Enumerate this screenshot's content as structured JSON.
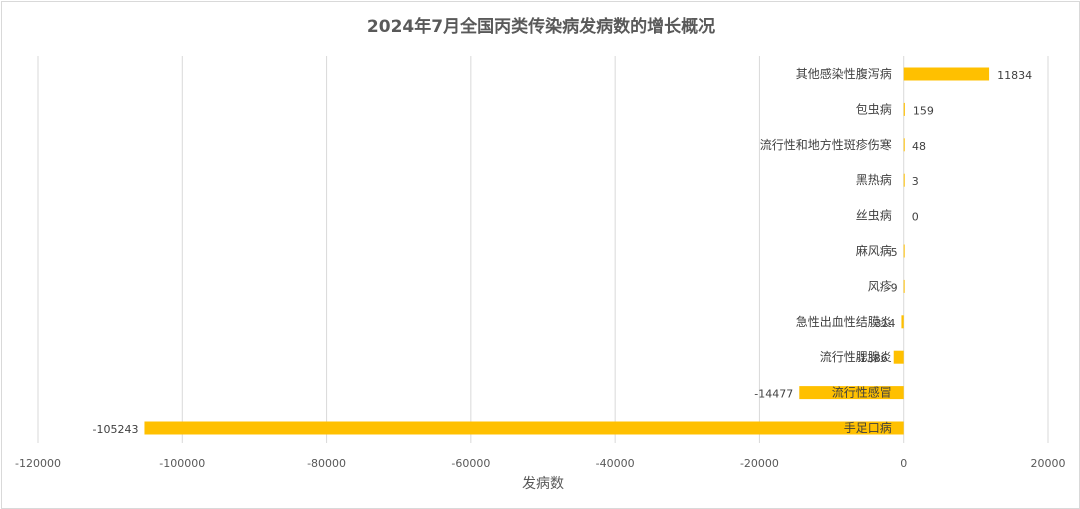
{
  "chart_data": {
    "type": "bar",
    "orientation": "horizontal",
    "title": "2024年7月全国丙类传染病发病数的增长概况",
    "xlabel": "发病数",
    "ylabel": "",
    "xlim": [
      -120000,
      20000
    ],
    "xticks": [
      -120000,
      -100000,
      -80000,
      -60000,
      -40000,
      -20000,
      0,
      20000
    ],
    "grid": "vertical",
    "legend": "none",
    "bar_color": "#ffc000",
    "categories": [
      "其他感染性腹泻病",
      "包虫病",
      "流行性和地方性斑疹伤寒",
      "黑热病",
      "丝虫病",
      "麻风病",
      "风疹",
      "急性出血性结膜炎",
      "流行性腮腺炎",
      "流行性感冒",
      "手足口病"
    ],
    "values": [
      11834,
      159,
      48,
      3,
      0,
      -5,
      -9,
      -314,
      -1386,
      -14477,
      -105243
    ],
    "data_labels": [
      "11834",
      "159",
      "48",
      "3",
      "0",
      "-5",
      "-9",
      "-314",
      "-1386",
      "-14477",
      "-105243"
    ]
  }
}
